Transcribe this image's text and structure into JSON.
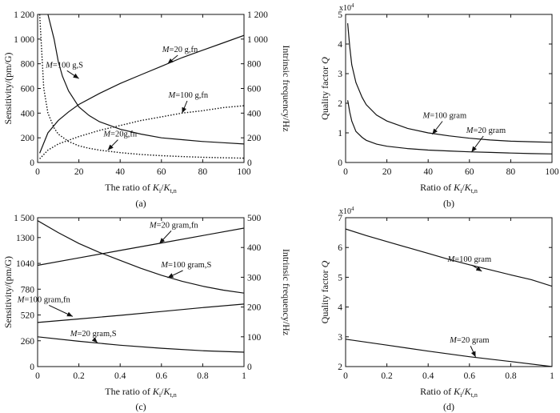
{
  "chart_data": [
    {
      "id": "a",
      "type": "line",
      "panel_label": "(a)",
      "xlabel": "The ratio of K_i/K_{t,n}",
      "ylabel": "Sensitivity/(pm/G)",
      "y2label": "Intrinsic frequency/Hz",
      "xlim": [
        0,
        100
      ],
      "ylim": [
        0,
        1200
      ],
      "y2lim": [
        0,
        1200
      ],
      "xticks": [
        0,
        20,
        40,
        60,
        80,
        100
      ],
      "yticks": [
        0,
        200,
        400,
        600,
        800,
        1000,
        1200
      ],
      "ytick_labels": [
        "0",
        "200",
        "400",
        "600",
        "800",
        "1 000",
        "1 200"
      ],
      "y2ticks": [
        0,
        200,
        400,
        600,
        800,
        1000,
        1200
      ],
      "y2tick_labels": [
        "0",
        "200",
        "400",
        "600",
        "800",
        "1 000",
        "1 200"
      ],
      "grid": false,
      "series": [
        {
          "name": "M=100 g,S",
          "axis": "left",
          "style": "solid",
          "x": [
            5,
            8,
            10,
            12,
            15,
            20,
            25,
            30,
            40,
            50,
            60,
            70,
            80,
            90,
            100
          ],
          "y": [
            1200,
            1000,
            820,
            700,
            580,
            450,
            380,
            330,
            270,
            230,
            200,
            185,
            170,
            160,
            150
          ],
          "label_text": "M=100 g,S",
          "label_pos": [
            13,
            770
          ],
          "arrow_to": [
            20,
            680
          ]
        },
        {
          "name": "M=20 g,fn",
          "axis": "right",
          "style": "solid",
          "x": [
            1,
            5,
            10,
            15,
            20,
            30,
            40,
            50,
            60,
            70,
            80,
            90,
            100
          ],
          "y": [
            75,
            240,
            340,
            410,
            470,
            560,
            640,
            710,
            780,
            850,
            910,
            970,
            1030
          ],
          "label_text": "M=20 g,fn",
          "label_pos": [
            69,
            895
          ],
          "arrow_to": [
            63,
            800
          ]
        },
        {
          "name": "M=100 g,fn",
          "axis": "right",
          "style": "dotted",
          "x": [
            1,
            5,
            10,
            20,
            30,
            40,
            50,
            60,
            70,
            80,
            90,
            100
          ],
          "y": [
            30,
            100,
            150,
            210,
            260,
            300,
            340,
            370,
            400,
            420,
            445,
            460
          ],
          "label_text": "M=100 g,fn",
          "label_pos": [
            73,
            525
          ],
          "arrow_to": [
            70,
            400
          ]
        },
        {
          "name": "M=20g,fn",
          "axis": "left",
          "style": "dotted",
          "x": [
            1,
            3,
            5,
            8,
            10,
            15,
            20,
            25,
            30,
            40,
            50,
            60,
            70,
            80,
            90,
            100
          ],
          "y": [
            1200,
            600,
            400,
            280,
            230,
            170,
            135,
            115,
            100,
            80,
            65,
            55,
            48,
            42,
            38,
            35
          ],
          "label_text": "M=20g,fn",
          "label_pos": [
            40,
            210
          ],
          "arrow_to": [
            34,
            100
          ]
        }
      ]
    },
    {
      "id": "b",
      "type": "line",
      "panel_label": "(b)",
      "xlabel": "Ratio of K_i/K_{t,n}",
      "ylabel": "Quality factor Q",
      "xlim": [
        0,
        100
      ],
      "ylim": [
        0,
        5
      ],
      "xticks": [
        0,
        20,
        40,
        60,
        80,
        100
      ],
      "yticks": [
        0,
        1,
        2,
        3,
        4,
        5
      ],
      "y_exponent": "×10⁴",
      "grid": false,
      "series": [
        {
          "name": "M=100 gram",
          "style": "solid",
          "x": [
            1,
            2,
            3,
            5,
            8,
            10,
            15,
            20,
            30,
            40,
            50,
            60,
            70,
            80,
            90,
            100
          ],
          "y": [
            4.7,
            3.9,
            3.3,
            2.7,
            2.2,
            1.95,
            1.6,
            1.4,
            1.15,
            1.0,
            0.9,
            0.82,
            0.76,
            0.72,
            0.7,
            0.68
          ],
          "label_text": "M=100 gram",
          "label_pos": [
            48,
            1.5
          ],
          "arrow_to": [
            42,
            0.95
          ]
        },
        {
          "name": "M=20 gram",
          "style": "solid",
          "x": [
            1,
            2,
            3,
            5,
            8,
            10,
            15,
            20,
            30,
            40,
            50,
            60,
            70,
            80,
            90,
            100
          ],
          "y": [
            2.1,
            1.7,
            1.4,
            1.05,
            0.85,
            0.75,
            0.62,
            0.55,
            0.47,
            0.42,
            0.39,
            0.36,
            0.34,
            0.32,
            0.3,
            0.29
          ],
          "label_text": "M=20 gram",
          "label_pos": [
            68,
            1.0
          ],
          "arrow_to": [
            61,
            0.35
          ]
        }
      ]
    },
    {
      "id": "c",
      "type": "line",
      "panel_label": "(c)",
      "xlabel": "The ratio of K_i/K_{t,n}",
      "ylabel": "Sensitivity/(pm/G)",
      "y2label": "Intrinsic frequency/Hz",
      "xlim": [
        0,
        1
      ],
      "ylim": [
        0,
        1500
      ],
      "y2lim": [
        0,
        500
      ],
      "xticks": [
        0,
        0.2,
        0.4,
        0.6,
        0.8,
        1
      ],
      "xtick_labels": [
        "0",
        "0.2",
        "0.4",
        "0.6",
        "0.8",
        "1"
      ],
      "yticks": [
        0,
        260,
        520,
        780,
        1040,
        1300,
        1500
      ],
      "ytick_labels": [
        "0",
        "260",
        "520",
        "780",
        "1040",
        "1300",
        "1 500"
      ],
      "y2ticks": [
        0,
        100,
        200,
        300,
        400,
        500
      ],
      "grid": false,
      "series": [
        {
          "name": "M=100 gram,S",
          "axis": "left",
          "style": "solid",
          "x": [
            0,
            0.1,
            0.2,
            0.3,
            0.4,
            0.5,
            0.6,
            0.7,
            0.8,
            0.9,
            1.0
          ],
          "y": [
            1470,
            1350,
            1240,
            1150,
            1070,
            990,
            920,
            860,
            810,
            770,
            740
          ],
          "label_text": "M=100 gram,S",
          "label_pos": [
            0.72,
            1000
          ],
          "arrow_to": [
            0.63,
            895
          ]
        },
        {
          "name": "M=20 gram,fn",
          "axis": "right",
          "style": "solid",
          "x": [
            0,
            0.2,
            0.4,
            0.6,
            0.8,
            1.0
          ],
          "y": [
            340,
            365,
            390,
            415,
            440,
            465
          ],
          "label_text": "M=20 gram,fn",
          "label_pos": [
            0.66,
            1400
          ],
          "arrow_to": [
            0.59,
            1240
          ]
        },
        {
          "name": "M=100 gram,fn",
          "axis": "right",
          "style": "solid",
          "x": [
            0,
            0.2,
            0.4,
            0.6,
            0.8,
            1.0
          ],
          "y": [
            148,
            160,
            172,
            185,
            198,
            210
          ],
          "label_text": "M=100 gram,fn",
          "label_pos": [
            0.03,
            650
          ],
          "arrow_to": [
            0.17,
            505
          ]
        },
        {
          "name": "M=20 gram,S",
          "axis": "left",
          "style": "solid",
          "x": [
            0,
            0.2,
            0.4,
            0.6,
            0.8,
            1.0
          ],
          "y": [
            300,
            255,
            215,
            185,
            160,
            145
          ],
          "label_text": "M=20 gram,S",
          "label_pos": [
            0.27,
            305
          ],
          "arrow_to": [
            0.29,
            240
          ]
        }
      ]
    },
    {
      "id": "d",
      "type": "line",
      "panel_label": "(d)",
      "xlabel": "Ratio of K_i/K_{t,n}",
      "ylabel": "Quality factor Q",
      "xlim": [
        0,
        1
      ],
      "ylim": [
        2,
        7
      ],
      "xticks": [
        0,
        0.2,
        0.4,
        0.6,
        0.8,
        1
      ],
      "xtick_labels": [
        "0",
        "0.2",
        "0.4",
        "0.6",
        "0.8",
        "1"
      ],
      "yticks": [
        2,
        3,
        4,
        5,
        6,
        7
      ],
      "y_exponent": "×10⁴",
      "grid": false,
      "series": [
        {
          "name": "M=100 gram",
          "style": "solid",
          "x": [
            0,
            0.1,
            0.2,
            0.3,
            0.4,
            0.5,
            0.6,
            0.7,
            0.8,
            0.9,
            1.0
          ],
          "y": [
            6.62,
            6.4,
            6.2,
            6.0,
            5.8,
            5.6,
            5.42,
            5.25,
            5.08,
            4.92,
            4.7
          ],
          "label_text": "M=100 gram",
          "label_pos": [
            0.6,
            5.52
          ],
          "arrow_to": [
            0.66,
            5.2
          ]
        },
        {
          "name": "M=20 gram",
          "style": "solid",
          "x": [
            0,
            0.2,
            0.4,
            0.6,
            0.8,
            1.0
          ],
          "y": [
            2.92,
            2.72,
            2.52,
            2.33,
            2.17,
            2.0
          ],
          "label_text": "M=20 gram",
          "label_pos": [
            0.6,
            2.8
          ],
          "arrow_to": [
            0.63,
            2.32
          ]
        }
      ]
    }
  ]
}
